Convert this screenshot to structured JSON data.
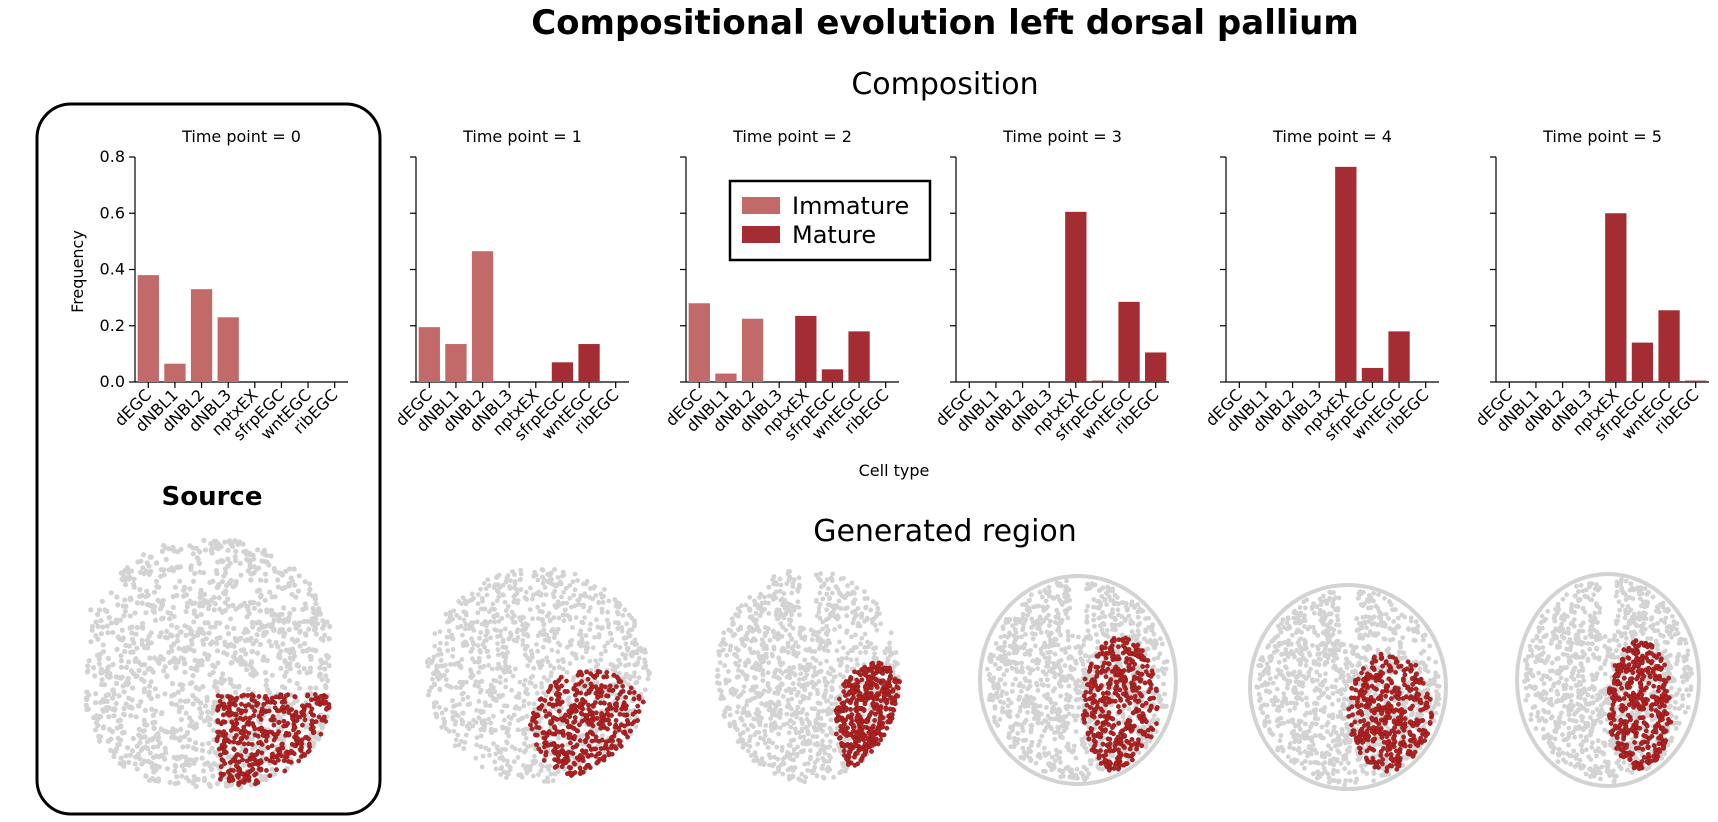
{
  "title": "Compositional evolution left dorsal pallium",
  "composition_title": "Composition",
  "generated_title": "Generated region",
  "source_title": "Source",
  "colors": {
    "immature": "#c26a6a",
    "mature": "#a32d32",
    "highlight": "#b22222",
    "background_cells": "#d3d3d3"
  },
  "chart_data": [
    {
      "type": "bar",
      "title": "Time point = 0",
      "categories": [
        "dEGC",
        "dNBL1",
        "dNBL2",
        "dNBL3",
        "nptxEX",
        "sfrpEGC",
        "wntEGC",
        "ribEGC"
      ],
      "values": [
        0.38,
        0.065,
        0.33,
        0.23,
        0,
        0,
        0,
        0
      ],
      "maturity": [
        "Immature",
        "Immature",
        "Immature",
        "Immature",
        "Mature",
        "Mature",
        "Mature",
        "Mature"
      ],
      "ylabel": "Frequency",
      "xlabel": "",
      "ylim": [
        0,
        0.8
      ],
      "yticks": [
        "0.0",
        "0.2",
        "0.4",
        "0.6",
        "0.8"
      ]
    },
    {
      "type": "bar",
      "title": "Time point = 1",
      "categories": [
        "dEGC",
        "dNBL1",
        "dNBL2",
        "dNBL3",
        "nptxEX",
        "sfrpEGC",
        "wntEGC",
        "ribEGC"
      ],
      "values": [
        0.195,
        0.135,
        0.465,
        0,
        0,
        0.07,
        0.135,
        0
      ],
      "maturity": [
        "Immature",
        "Immature",
        "Immature",
        "Immature",
        "Mature",
        "Mature",
        "Mature",
        "Mature"
      ],
      "ylim": [
        0,
        0.8
      ]
    },
    {
      "type": "bar",
      "title": "Time point = 2",
      "categories": [
        "dEGC",
        "dNBL1",
        "dNBL2",
        "dNBL3",
        "nptxEX",
        "sfrpEGC",
        "wntEGC",
        "ribEGC"
      ],
      "values": [
        0.28,
        0.03,
        0.225,
        0,
        0.235,
        0.045,
        0.18,
        0
      ],
      "maturity": [
        "Immature",
        "Immature",
        "Immature",
        "Immature",
        "Mature",
        "Mature",
        "Mature",
        "Mature"
      ],
      "xlabel": "Cell type",
      "ylim": [
        0,
        0.8
      ]
    },
    {
      "type": "bar",
      "title": "Time point = 3",
      "categories": [
        "dEGC",
        "dNBL1",
        "dNBL2",
        "dNBL3",
        "nptxEX",
        "sfrpEGC",
        "wntEGC",
        "ribEGC"
      ],
      "values": [
        0,
        0,
        0,
        0,
        0.605,
        0.005,
        0.285,
        0.105
      ],
      "maturity": [
        "Immature",
        "Immature",
        "Immature",
        "Immature",
        "Mature",
        "Mature",
        "Mature",
        "Mature"
      ],
      "ylim": [
        0,
        0.8
      ]
    },
    {
      "type": "bar",
      "title": "Time point = 4",
      "categories": [
        "dEGC",
        "dNBL1",
        "dNBL2",
        "dNBL3",
        "nptxEX",
        "sfrpEGC",
        "wntEGC",
        "ribEGC"
      ],
      "values": [
        0,
        0,
        0,
        0,
        0.765,
        0.05,
        0.18,
        0
      ],
      "maturity": [
        "Immature",
        "Immature",
        "Immature",
        "Immature",
        "Mature",
        "Mature",
        "Mature",
        "Mature"
      ],
      "ylim": [
        0,
        0.8
      ]
    },
    {
      "type": "bar",
      "title": "Time point = 5",
      "categories": [
        "dEGC",
        "dNBL1",
        "dNBL2",
        "dNBL3",
        "nptxEX",
        "sfrpEGC",
        "wntEGC",
        "ribEGC"
      ],
      "values": [
        0,
        0,
        0,
        0,
        0.6,
        0.14,
        0.255,
        0.005
      ],
      "maturity": [
        "Immature",
        "Immature",
        "Immature",
        "Immature",
        "Mature",
        "Mature",
        "Mature",
        "Mature"
      ],
      "ylim": [
        0,
        0.8
      ]
    }
  ],
  "legend": {
    "items": [
      {
        "label": "Immature",
        "color": "#c26a6a"
      },
      {
        "label": "Mature",
        "color": "#a32d32"
      }
    ]
  }
}
